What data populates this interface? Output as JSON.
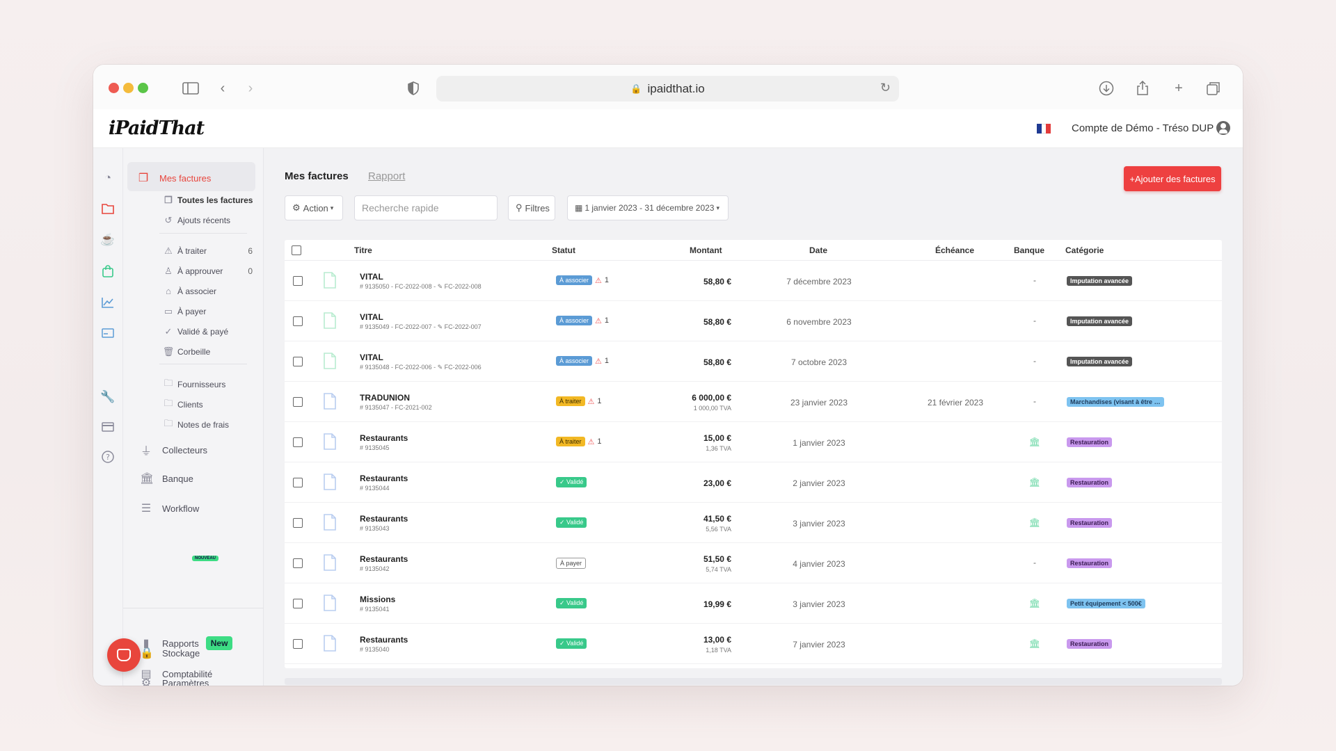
{
  "browser": {
    "url": "ipaidthat.io"
  },
  "app": {
    "logo": "iPaidThat",
    "account": "Compte de Démo - Tréso DUP",
    "flag_colors": [
      "#1f3a93",
      "#ffffff",
      "#e23b3b"
    ]
  },
  "nav": {
    "primary": {
      "label": "Mes factures",
      "color": "#e8453c"
    },
    "invoices_sub": [
      {
        "label": "Toutes les factures"
      },
      {
        "label": "Ajouts récents"
      }
    ],
    "status_items": [
      {
        "label": "À traiter",
        "count": "6"
      },
      {
        "label": "À approuver",
        "count": "0"
      },
      {
        "label": "À associer",
        "count": ""
      },
      {
        "label": "À payer",
        "count": ""
      },
      {
        "label": "Validé & payé",
        "count": ""
      },
      {
        "label": "Corbeille",
        "count": ""
      }
    ],
    "contacts": [
      {
        "label": "Fournisseurs"
      },
      {
        "label": "Clients"
      },
      {
        "label": "Notes de frais"
      }
    ],
    "collecteurs": "Collecteurs",
    "banque": "Banque",
    "workflow": "Workflow",
    "workflow_badge": "NOUVEAU",
    "stockage": "Stockage",
    "parametres": "Paramètres",
    "rapports": "Rapports",
    "rapports_badge": "New",
    "comptabilite": "Comptabilité"
  },
  "main": {
    "tabs": {
      "active": "Mes factures",
      "inactive": "Rapport"
    },
    "add_button": "+Ajouter des factures",
    "toolbar": {
      "action": "Action",
      "search_placeholder": "Recherche rapide",
      "filters": "Filtres",
      "date_range": "1 janvier 2023 - 31 décembre 2023"
    },
    "columns": {
      "titre": "Titre",
      "statut": "Statut",
      "montant": "Montant",
      "date": "Date",
      "echeance": "Échéance",
      "banque": "Banque",
      "categorie": "Catégorie"
    },
    "rows": [
      {
        "title": "VITAL",
        "ref": "# 9135050 - FC-2022-008 - ✎ FC-2022-008",
        "status": "À associer",
        "status_kind": "assoc",
        "warn": "1",
        "amount": "58,80 €",
        "tva": "",
        "date": "7 décembre 2023",
        "due": "",
        "bank": "-",
        "category": "Imputation avancée",
        "cat_bg": "#555555",
        "cat_fg": "#ffffff",
        "doc_color": "#b8ecd0"
      },
      {
        "title": "VITAL",
        "ref": "# 9135049 - FC-2022-007 - ✎ FC-2022-007",
        "status": "À associer",
        "status_kind": "assoc",
        "warn": "1",
        "amount": "58,80 €",
        "tva": "",
        "date": "6 novembre 2023",
        "due": "",
        "bank": "-",
        "category": "Imputation avancée",
        "cat_bg": "#555555",
        "cat_fg": "#ffffff",
        "doc_color": "#b8ecd0"
      },
      {
        "title": "VITAL",
        "ref": "# 9135048 - FC-2022-006 - ✎ FC-2022-006",
        "status": "À associer",
        "status_kind": "assoc",
        "warn": "1",
        "amount": "58,80 €",
        "tva": "",
        "date": "7 octobre 2023",
        "due": "",
        "bank": "-",
        "category": "Imputation avancée",
        "cat_bg": "#555555",
        "cat_fg": "#ffffff",
        "doc_color": "#b8ecd0"
      },
      {
        "title": "TRADUNION",
        "ref": "# 9135047 - FC-2021-002",
        "status": "À traiter",
        "status_kind": "traiter",
        "warn": "1",
        "amount": "6 000,00 €",
        "tva": "1 000,00 TVA",
        "date": "23 janvier 2023",
        "due": "21 février 2023",
        "bank": "-",
        "category": "Marchandises (visant à être r...",
        "cat_bg": "#7ec3f0",
        "cat_fg": "#1e3a5a",
        "doc_color": "#b9cdf0"
      },
      {
        "title": "Restaurants",
        "ref": "# 9135045",
        "status": "À traiter",
        "status_kind": "traiter",
        "warn": "1",
        "amount": "15,00 €",
        "tva": "1,36 TVA",
        "date": "1 janvier 2023",
        "due": "",
        "bank": "bank",
        "category": "Restauration",
        "cat_bg": "#c999ee",
        "cat_fg": "#3a1b52",
        "doc_color": "#b9cdf0"
      },
      {
        "title": "Restaurants",
        "ref": "# 9135044",
        "status": "✓ Validé",
        "status_kind": "valide",
        "warn": "",
        "amount": "23,00 €",
        "tva": "",
        "date": "2 janvier 2023",
        "due": "",
        "bank": "bank",
        "category": "Restauration",
        "cat_bg": "#c999ee",
        "cat_fg": "#3a1b52",
        "doc_color": "#b9cdf0"
      },
      {
        "title": "Restaurants",
        "ref": "# 9135043",
        "status": "✓ Validé",
        "status_kind": "valide",
        "warn": "",
        "amount": "41,50 €",
        "tva": "5,56 TVA",
        "date": "3 janvier 2023",
        "due": "",
        "bank": "bank",
        "category": "Restauration",
        "cat_bg": "#c999ee",
        "cat_fg": "#3a1b52",
        "doc_color": "#b9cdf0"
      },
      {
        "title": "Restaurants",
        "ref": "# 9135042",
        "status": "À payer",
        "status_kind": "payer",
        "warn": "",
        "amount": "51,50 €",
        "tva": "5,74 TVA",
        "date": "4 janvier 2023",
        "due": "",
        "bank": "-",
        "category": "Restauration",
        "cat_bg": "#c999ee",
        "cat_fg": "#3a1b52",
        "doc_color": "#b9cdf0"
      },
      {
        "title": "Missions",
        "ref": "# 9135041",
        "status": "✓ Validé",
        "status_kind": "valide",
        "warn": "",
        "amount": "19,99 €",
        "tva": "",
        "date": "3 janvier 2023",
        "due": "",
        "bank": "bank",
        "category": "Petit équipement < 500€",
        "cat_bg": "#7ec3f0",
        "cat_fg": "#1e3a5a",
        "doc_color": "#b9cdf0"
      },
      {
        "title": "Restaurants",
        "ref": "# 9135040",
        "status": "✓ Validé",
        "status_kind": "valide",
        "warn": "",
        "amount": "13,00 €",
        "tva": "1,18 TVA",
        "date": "7 janvier 2023",
        "due": "",
        "bank": "bank",
        "category": "Restauration",
        "cat_bg": "#c999ee",
        "cat_fg": "#3a1b52",
        "doc_color": "#b9cdf0"
      }
    ]
  },
  "colors": {
    "accent": "#ee4040",
    "bank_icon": "#6fd9a8"
  }
}
